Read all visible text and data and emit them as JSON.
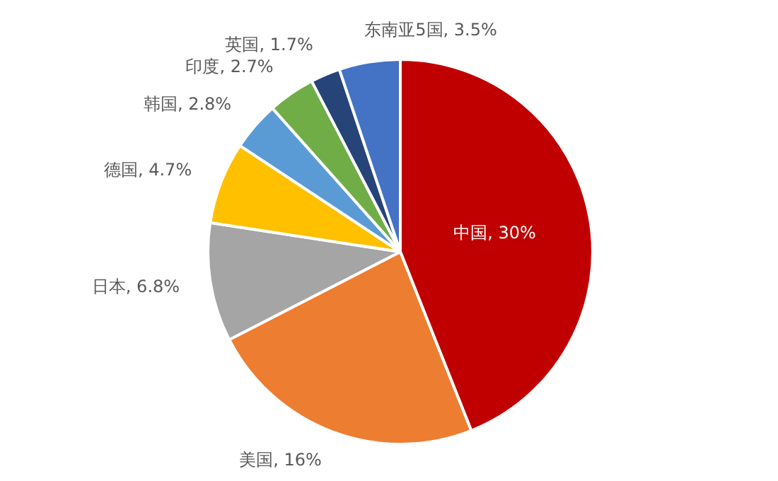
{
  "chart_data": {
    "type": "pie",
    "categories": [
      "中国",
      "美国",
      "日本",
      "德国",
      "韩国",
      "印度",
      "英国",
      "东南亚5国"
    ],
    "values": [
      30,
      16,
      6.8,
      4.7,
      2.8,
      2.7,
      1.7,
      3.5
    ],
    "value_labels": [
      "30%",
      "16%",
      "6.8%",
      "4.7%",
      "2.8%",
      "2.7%",
      "1.7%",
      "3.5%"
    ],
    "colors": [
      "#c00000",
      "#ed7d31",
      "#a5a5a5",
      "#ffc000",
      "#5b9bd5",
      "#70ad47",
      "#264478",
      "#4472c4"
    ],
    "legend": false
  }
}
